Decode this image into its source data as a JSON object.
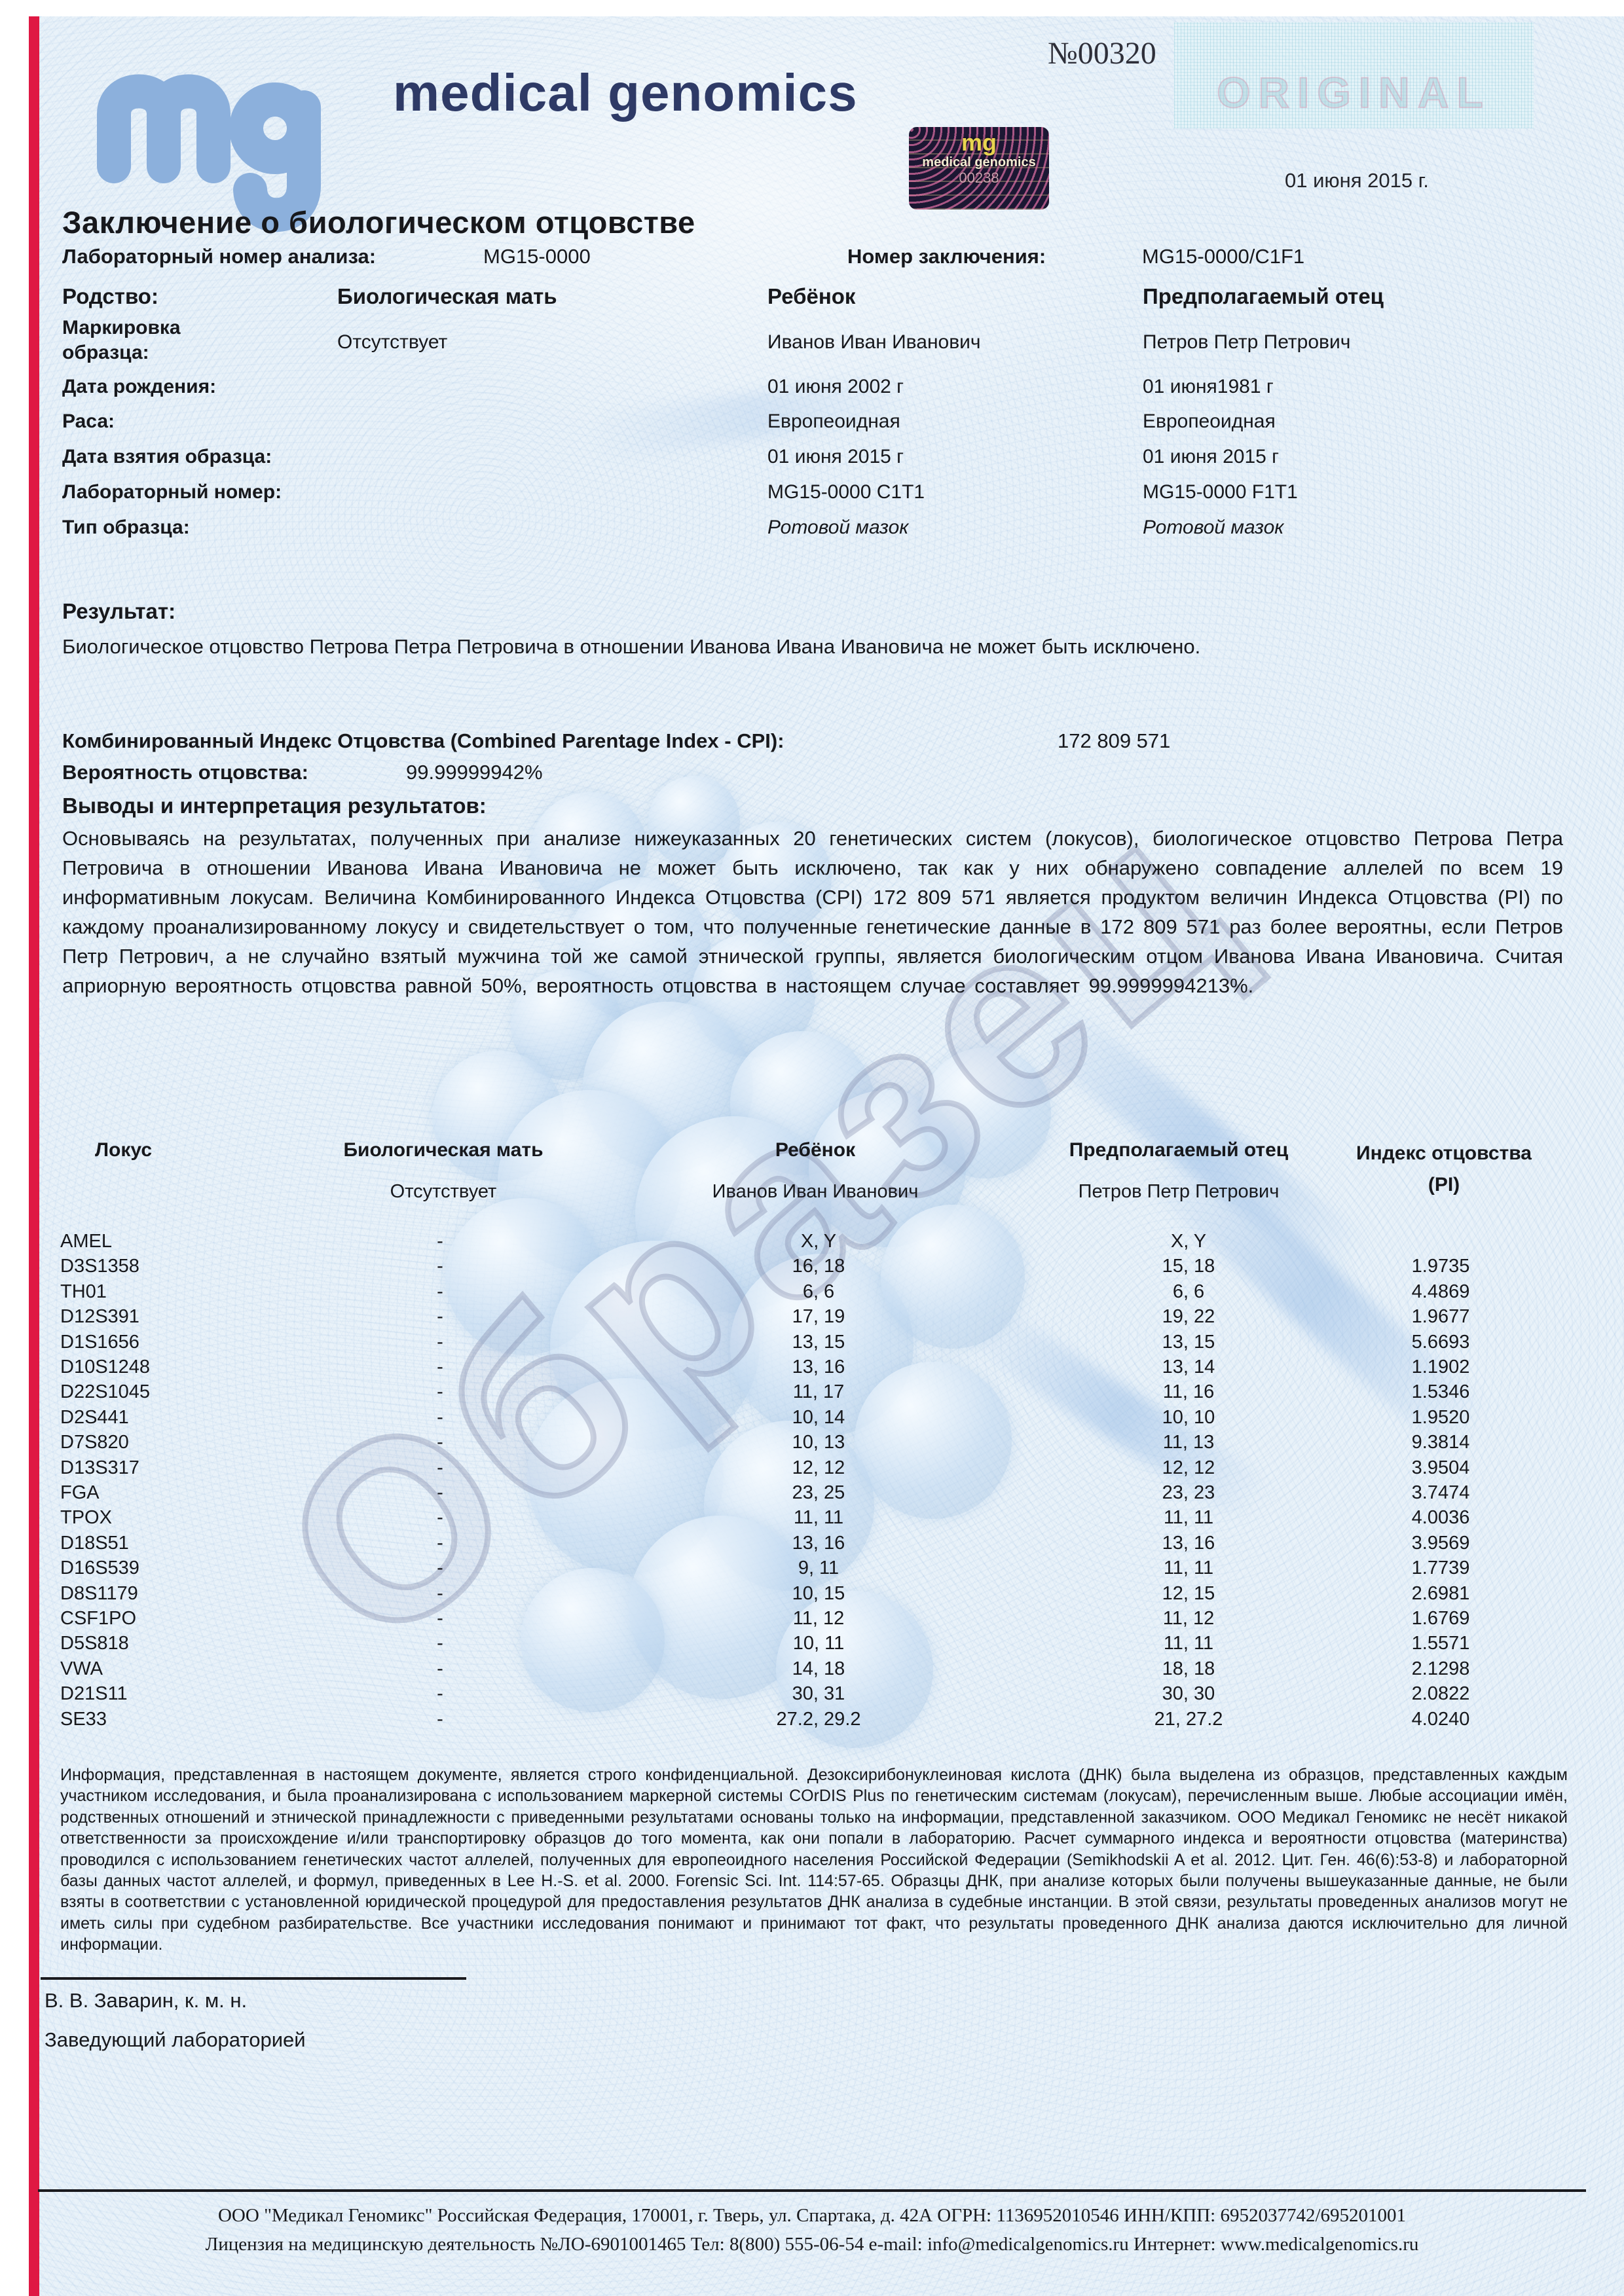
{
  "header": {
    "doc_number": "№00320",
    "brand_name": "medical genomics",
    "original_mark": "ORIGINAL",
    "date": "01 июня 2015 г.",
    "hologram": {
      "logo": "mg",
      "name": "medical genomics",
      "number": "00238"
    }
  },
  "title": "Заключение о биологическом отцовстве",
  "meta": {
    "lab_number_label": "Лабораторный номер анализа:",
    "lab_number_value": "MG15-0000",
    "report_number_label": "Номер заключения:",
    "report_number_value": "MG15-0000/C1F1"
  },
  "parties": {
    "relation_label": "Родство:",
    "mother_header": "Биологическая мать",
    "child_header": "Ребёнок",
    "father_header": "Предполагаемый отец",
    "rows": [
      {
        "label": "Маркировка образца:",
        "mother": "Отсутствует",
        "child": "Иванов Иван Иванович",
        "father": "Петров Петр Петрович"
      },
      {
        "label": "Дата рождения:",
        "mother": "",
        "child": "01 июня 2002 г",
        "father": "01 июня1981 г"
      },
      {
        "label": "Раса:",
        "mother": "",
        "child": "Европеоидная",
        "father": "Европеоидная"
      },
      {
        "label": "Дата взятия образца:",
        "mother": "",
        "child": "01 июня 2015 г",
        "father": "01 июня 2015 г"
      },
      {
        "label": "Лабораторный номер:",
        "mother": "",
        "child": "MG15-0000 C1T1",
        "father": "MG15-0000 F1T1"
      },
      {
        "label": "Тип образца:",
        "mother": "",
        "child": "Ротовой мазок",
        "father": "Ротовой мазок"
      }
    ]
  },
  "result": {
    "heading": "Результат:",
    "text": "Биологическое отцовство Петрова Петра Петровича в отношении Иванова Ивана Ивановича не может быть исключено."
  },
  "cpi": {
    "label": "Комбинированный Индекс Отцовства (Combined Parentage Index - CPI):",
    "value": "172 809 571",
    "probability_label": "Вероятность отцовства:",
    "probability_value": "99.99999942%"
  },
  "conclusions": {
    "heading": "Выводы и интерпретация результатов:",
    "text": "Основываясь на результатах, полученных при анализе нижеуказанных 20 генетических систем (локусов), биологическое отцовство Петрова Петра Петровича в отношении Иванова Ивана Ивановича не может быть исключено, так как у них обнаружено совпадение аллелей по всем 19 информативным локусам. Величина Комбинированного Индекса Отцовства (CPI) 172 809 571 является продуктом величин Индекса Отцовства (PI) по каждому проанализированному локусу и свидетельствует о том, что полученные генетические данные в 172 809 571 раз более вероятны, если Петров Петр Петрович, а не случайно взятый мужчина той же самой этнической группы, является биологическим отцом Иванова Ивана Ивановича. Считая априорную вероятность отцовства равной 50%, вероятность отцовства в настоящем случае составляет 99.9999994213%."
  },
  "locus_table": {
    "headers": {
      "locus": "Локус",
      "mother": "Биологическая мать",
      "child": "Ребёнок",
      "father": "Предполагаемый отец",
      "pi": "Индекс отцовства (PI)"
    },
    "subheaders": {
      "mother": "Отсутствует",
      "child": "Иванов Иван Иванович",
      "father": "Петров Петр Петрович"
    },
    "rows": [
      [
        "AMEL",
        "-",
        "X, Y",
        "X, Y",
        ""
      ],
      [
        "D3S1358",
        "-",
        "16, 18",
        "15, 18",
        "1.9735"
      ],
      [
        "TH01",
        "-",
        "6, 6",
        "6, 6",
        "4.4869"
      ],
      [
        "D12S391",
        "-",
        "17, 19",
        "19, 22",
        "1.9677"
      ],
      [
        "D1S1656",
        "-",
        "13, 15",
        "13, 15",
        "5.6693"
      ],
      [
        "D10S1248",
        "-",
        "13, 16",
        "13, 14",
        "1.1902"
      ],
      [
        "D22S1045",
        "-",
        "11, 17",
        "11, 16",
        "1.5346"
      ],
      [
        "D2S441",
        "-",
        "10, 14",
        "10, 10",
        "1.9520"
      ],
      [
        "D7S820",
        "-",
        "10, 13",
        "11, 13",
        "9.3814"
      ],
      [
        "D13S317",
        "-",
        "12, 12",
        "12, 12",
        "3.9504"
      ],
      [
        "FGA",
        "-",
        "23, 25",
        "23, 23",
        "3.7474"
      ],
      [
        "TPOX",
        "-",
        "11, 11",
        "11, 11",
        "4.0036"
      ],
      [
        "D18S51",
        "-",
        "13, 16",
        "13, 16",
        "3.9569"
      ],
      [
        "D16S539",
        "-",
        "9, 11",
        "11, 11",
        "1.7739"
      ],
      [
        "D8S1179",
        "-",
        "10, 15",
        "12, 15",
        "2.6981"
      ],
      [
        "CSF1PO",
        "-",
        "11, 12",
        "11, 12",
        "1.6769"
      ],
      [
        "D5S818",
        "-",
        "10, 11",
        "11, 11",
        "1.5571"
      ],
      [
        "VWA",
        "-",
        "14, 18",
        "18, 18",
        "2.1298"
      ],
      [
        "D21S11",
        "-",
        "30, 31",
        "30, 30",
        "2.0822"
      ],
      [
        "SE33",
        "-",
        "27.2, 29.2",
        "21, 27.2",
        "4.0240"
      ]
    ]
  },
  "disclaimer": "Информация, представленная в настоящем документе, является строго конфиденциальной. Дезоксирибонуклеиновая кислота (ДНК) была выделена из образцов, представленных каждым участником исследования, и была проанализирована с использованием маркерной системы COrDIS Plus по генетическим системам (локусам), перечисленным выше. Любые ассоциации имён, родственных отношений и этнической принадлежности с приведенными результатами основаны только на информации, представленной заказчиком. ООО Медикал Геномикс не несёт никакой ответственности за происхождение и/или транспортировку образцов до того момента, как они попали в лабораторию. Расчет суммарного индекса и вероятности отцовства (материнства) проводился с использованием генетических частот аллелей, полученных для европеоидного населения Российской Федерации (Semikhodskii A et al. 2012. Цит. Ген. 46(6):53-8) и лабораторной базы данных частот аллелей, и формул, приведенных в Lee H.-S. et al. 2000. Forensic Sci. Int. 114:57-65. Образцы ДНК, при анализе которых были получены вышеуказанные данные, не были взяты в соответствии с установленной юридической процедурой для предоставления результатов ДНК анализа в судебные инстанции. В этой связи, результаты проведенных анализов могут не иметь силы при судебном разбирательстве. Все участники исследования понимают и принимают тот факт, что результаты проведенного ДНК анализа даются исключительно для личной информации.",
  "signature": {
    "name": "В. В. Заварин, к. м. н.",
    "role": "Заведующий лабораторией"
  },
  "footer": {
    "line1": "ООО \"Медикал Геномикс\" Российская Федерация, 170001, г. Тверь, ул. Спартака, д. 42А ОГРН: 1136952010546 ИНН/КПП: 6952037742/695201001",
    "line2": "Лицензия на медицинскую деятельность №ЛО-6901001465 Тел: 8(800) 555-06-54 e-mail: info@medicalgenomics.ru Интернет: www.medicalgenomics.ru"
  },
  "watermark": "Образец"
}
